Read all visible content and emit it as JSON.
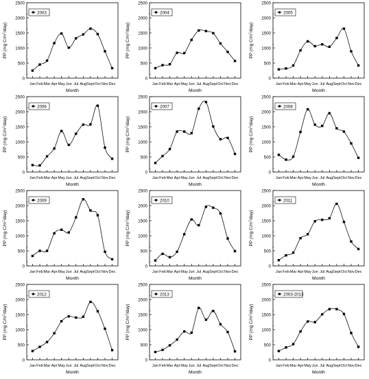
{
  "chart_data": [
    {
      "type": "line",
      "legend": "2003",
      "xlabel": "Month",
      "ylabel": "PP (mg C/m²/day)",
      "ylim": [
        0,
        2500
      ],
      "yticks": [
        0,
        500,
        1000,
        1500,
        2000,
        2500
      ],
      "categories": [
        "Jan",
        "Feb",
        "Mar",
        "Apr",
        "May",
        "Jun",
        "Jul",
        "Aug",
        "Sept",
        "Oct",
        "Nov",
        "Dec"
      ],
      "values": [
        250,
        450,
        580,
        1160,
        1480,
        1010,
        1320,
        1450,
        1640,
        1460,
        890,
        330
      ]
    },
    {
      "type": "line",
      "legend": "2004",
      "xlabel": "Month",
      "ylabel": "PP (mg C/m²/day)",
      "ylim": [
        0,
        2500
      ],
      "yticks": [
        0,
        500,
        1000,
        1500,
        2000,
        2500
      ],
      "categories": [
        "Jan",
        "Feb",
        "Mar",
        "Apr",
        "May",
        "Jun",
        "Jul",
        "Aug",
        "Sept",
        "Oct",
        "Nov",
        "Dec"
      ],
      "values": [
        330,
        430,
        460,
        840,
        830,
        1270,
        1580,
        1560,
        1490,
        1150,
        870,
        570
      ]
    },
    {
      "type": "line",
      "legend": "2005",
      "xlabel": "Month",
      "ylabel": "PP (mg C/m²/day)",
      "ylim": [
        0,
        2500
      ],
      "yticks": [
        0,
        500,
        1000,
        1500,
        2000,
        2500
      ],
      "categories": [
        "Jan",
        "Feb",
        "Mar",
        "Apr",
        "May",
        "Jun",
        "Jul",
        "Aug",
        "Sept",
        "Oct",
        "Nov",
        "Dec"
      ],
      "values": [
        290,
        320,
        420,
        920,
        1220,
        1060,
        1120,
        1040,
        1330,
        1640,
        890,
        420
      ]
    },
    {
      "type": "line",
      "legend": "2006",
      "xlabel": "Month",
      "ylabel": "PP (mg C/m²/day)",
      "ylim": [
        0,
        2500
      ],
      "yticks": [
        0,
        500,
        1000,
        1500,
        2000,
        2500
      ],
      "categories": [
        "Jan",
        "Feb",
        "Mar",
        "Apr",
        "May",
        "Jun",
        "Jul",
        "Aug",
        "Sept",
        "Oct",
        "Nov",
        "Dec"
      ],
      "values": [
        230,
        220,
        520,
        780,
        1360,
        900,
        1270,
        1570,
        1580,
        2200,
        810,
        440
      ]
    },
    {
      "type": "line",
      "legend": "2007",
      "xlabel": "Month",
      "ylabel": "PP (mg C/m²/day)",
      "ylim": [
        0,
        2500
      ],
      "yticks": [
        0,
        500,
        1000,
        1500,
        2000,
        2500
      ],
      "categories": [
        "Jan",
        "Feb",
        "Mar",
        "Apr",
        "May",
        "Jun",
        "Jul",
        "Aug",
        "Sept",
        "Oct",
        "Nov",
        "Dec"
      ],
      "values": [
        300,
        530,
        760,
        1340,
        1340,
        1290,
        2100,
        2320,
        1510,
        1090,
        1130,
        600
      ]
    },
    {
      "type": "line",
      "legend": "2008",
      "xlabel": "Month",
      "ylabel": "PP (mg C/m²/day)",
      "ylim": [
        0,
        2500
      ],
      "yticks": [
        0,
        500,
        1000,
        1500,
        2000,
        2500
      ],
      "categories": [
        "Jan",
        "Feb",
        "Mar",
        "Apr",
        "May",
        "Jun",
        "Jul",
        "Aug",
        "Sept",
        "Oct",
        "Nov",
        "Dec"
      ],
      "values": [
        570,
        410,
        510,
        1330,
        2080,
        1570,
        1530,
        1950,
        1450,
        1340,
        950,
        470
      ]
    },
    {
      "type": "line",
      "legend": "2009",
      "xlabel": "Month",
      "ylabel": "PP (mg C/m²/day)",
      "ylim": [
        0,
        2500
      ],
      "yticks": [
        0,
        500,
        1000,
        1500,
        2000,
        2500
      ],
      "categories": [
        "Jan",
        "Feb",
        "Mar",
        "Apr",
        "May",
        "Jun",
        "Jul",
        "Aug",
        "Sept",
        "Oct",
        "Nov",
        "Dec"
      ],
      "values": [
        330,
        500,
        500,
        1080,
        1200,
        1110,
        1610,
        2210,
        1840,
        1680,
        470,
        220
      ]
    },
    {
      "type": "line",
      "legend": "2010",
      "xlabel": "Month",
      "ylabel": "PP (mg C/m²/day)",
      "ylim": [
        0,
        2500
      ],
      "yticks": [
        0,
        500,
        1000,
        1500,
        2000,
        2500
      ],
      "categories": [
        "Jan",
        "Feb",
        "Mar",
        "Apr",
        "May",
        "Jun",
        "Jul",
        "Aug",
        "Sept",
        "Oct",
        "Nov",
        "Dec"
      ],
      "values": [
        180,
        400,
        290,
        470,
        1050,
        1540,
        1350,
        1960,
        1930,
        1740,
        910,
        490
      ]
    },
    {
      "type": "line",
      "legend": "2011",
      "xlabel": "Month",
      "ylabel": "PP (mg C/m²/day)",
      "ylim": [
        0,
        2500
      ],
      "yticks": [
        0,
        500,
        1000,
        1500,
        2000,
        2500
      ],
      "categories": [
        "Jan",
        "Feb",
        "Mar",
        "Apr",
        "May",
        "Jun",
        "Jul",
        "Aug",
        "Sept",
        "Oct",
        "Nov",
        "Dec"
      ],
      "values": [
        190,
        350,
        440,
        920,
        1050,
        1480,
        1530,
        1580,
        2060,
        1460,
        810,
        560
      ]
    },
    {
      "type": "line",
      "legend": "2012",
      "xlabel": "Month",
      "ylabel": "PP (mg C/m²/day)",
      "ylim": [
        0,
        2500
      ],
      "yticks": [
        0,
        500,
        1000,
        1500,
        2000,
        2500
      ],
      "categories": [
        "Jan",
        "Feb",
        "Mar",
        "Apr",
        "May",
        "Jun",
        "Jul",
        "Aug",
        "Sept",
        "Oct",
        "Nov",
        "Dec"
      ],
      "values": [
        290,
        430,
        590,
        880,
        1280,
        1440,
        1400,
        1430,
        1920,
        1610,
        1030,
        320
      ]
    },
    {
      "type": "line",
      "legend": "2013",
      "xlabel": "Month",
      "ylabel": "PP (mg C/m²/day)",
      "ylim": [
        0,
        2500
      ],
      "yticks": [
        0,
        500,
        1000,
        1500,
        2000,
        2500
      ],
      "categories": [
        "Jan",
        "Feb",
        "Mar",
        "Apr",
        "May",
        "Jun",
        "Jul",
        "Aug",
        "Sept",
        "Oct",
        "Nov",
        "Dec"
      ],
      "values": [
        260,
        330,
        480,
        670,
        940,
        900,
        1720,
        1330,
        1620,
        1180,
        920,
        280
      ]
    },
    {
      "type": "line",
      "legend": "2003-2013",
      "xlabel": "Month",
      "ylabel": "PP (mg C/m²/day)",
      "ylim": [
        0,
        2500
      ],
      "yticks": [
        0,
        500,
        1000,
        1500,
        2000,
        2500
      ],
      "categories": [
        "Jan",
        "Feb",
        "Mar",
        "Apr",
        "May",
        "Jun",
        "Jul",
        "Aug",
        "Sept",
        "Oct",
        "Nov",
        "Dec"
      ],
      "values": [
        290,
        410,
        520,
        940,
        1270,
        1250,
        1510,
        1680,
        1680,
        1520,
        890,
        430
      ]
    }
  ]
}
